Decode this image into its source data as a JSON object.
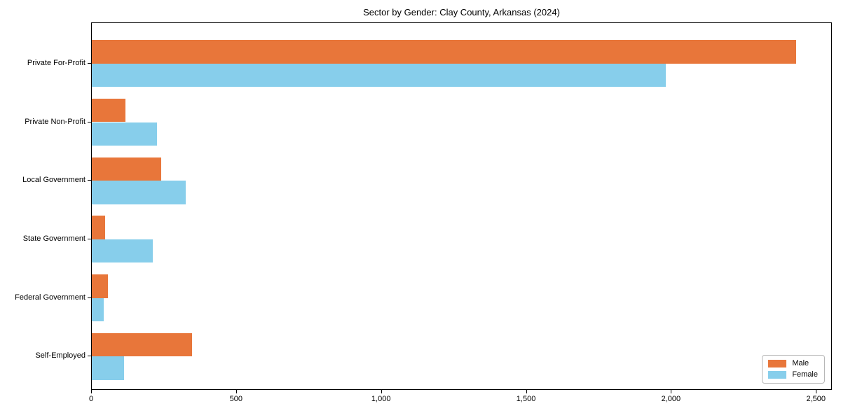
{
  "chart_data": {
    "type": "bar",
    "orientation": "horizontal",
    "title": "Sector by Gender: Clay County, Arkansas (2024)",
    "categories": [
      "Private For-Profit",
      "Private Non-Profit",
      "Local Government",
      "State Government",
      "Federal Government",
      "Self-Employed"
    ],
    "series": [
      {
        "name": "Male",
        "color": "#e8763a",
        "values": [
          2430,
          115,
          240,
          45,
          55,
          345
        ]
      },
      {
        "name": "Female",
        "color": "#87ceeb",
        "values": [
          1980,
          225,
          325,
          210,
          40,
          110
        ]
      }
    ],
    "xlabel": "",
    "ylabel": "",
    "xlim": [
      0,
      2555
    ],
    "xticks": [
      0,
      500,
      1000,
      1500,
      2000,
      2500
    ],
    "xtick_labels": [
      "0",
      "500",
      "1,000",
      "1,500",
      "2,000",
      "2,500"
    ],
    "grid": false,
    "legend_position": "lower right",
    "bar_height_fraction": 0.4
  }
}
